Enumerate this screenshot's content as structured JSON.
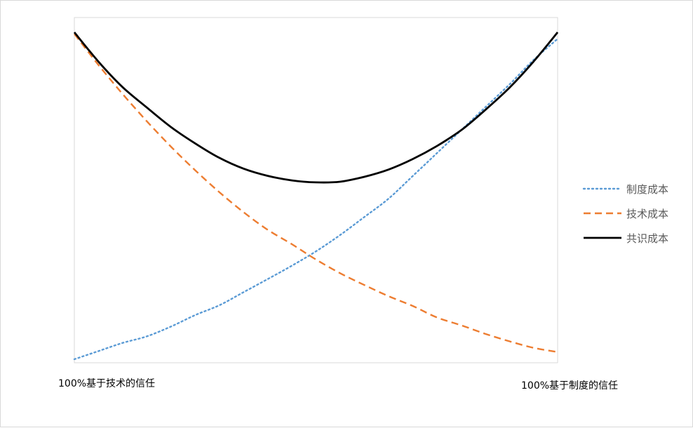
{
  "chart_data": {
    "type": "line",
    "title": "",
    "xlabel": "",
    "ylabel": "",
    "x_end_labels": {
      "left": "100%基于技术的信任",
      "right": "100%基于制度的信任"
    },
    "x": [
      0,
      0.05,
      0.1,
      0.15,
      0.2,
      0.25,
      0.3,
      0.35,
      0.4,
      0.45,
      0.5,
      0.55,
      0.6,
      0.65,
      0.7,
      0.75,
      0.8,
      0.85,
      0.9,
      0.95,
      1.0
    ],
    "xlim": [
      0,
      1
    ],
    "ylim": [
      0,
      1
    ],
    "grid": false,
    "legend_position": "right",
    "series": [
      {
        "name": "制度成本",
        "style": "dotted",
        "color": "#5b9bd5",
        "values": [
          0.0,
          0.025,
          0.05,
          0.07,
          0.1,
          0.135,
          0.165,
          0.205,
          0.245,
          0.286,
          0.33,
          0.38,
          0.435,
          0.491,
          0.56,
          0.63,
          0.7,
          0.77,
          0.84,
          0.915,
          0.98
        ]
      },
      {
        "name": "技术成本",
        "style": "dashed",
        "color": "#ed7d31",
        "values": [
          0.995,
          0.9,
          0.811,
          0.728,
          0.65,
          0.578,
          0.511,
          0.45,
          0.396,
          0.352,
          0.305,
          0.263,
          0.227,
          0.193,
          0.163,
          0.128,
          0.104,
          0.078,
          0.055,
          0.035,
          0.022
        ]
      },
      {
        "name": "共识成本",
        "style": "solid",
        "color": "#000000",
        "values": [
          1.0,
          0.91,
          0.832,
          0.77,
          0.71,
          0.66,
          0.616,
          0.583,
          0.561,
          0.547,
          0.541,
          0.543,
          0.558,
          0.58,
          0.612,
          0.652,
          0.7,
          0.762,
          0.83,
          0.91,
          1.0
        ]
      }
    ]
  }
}
